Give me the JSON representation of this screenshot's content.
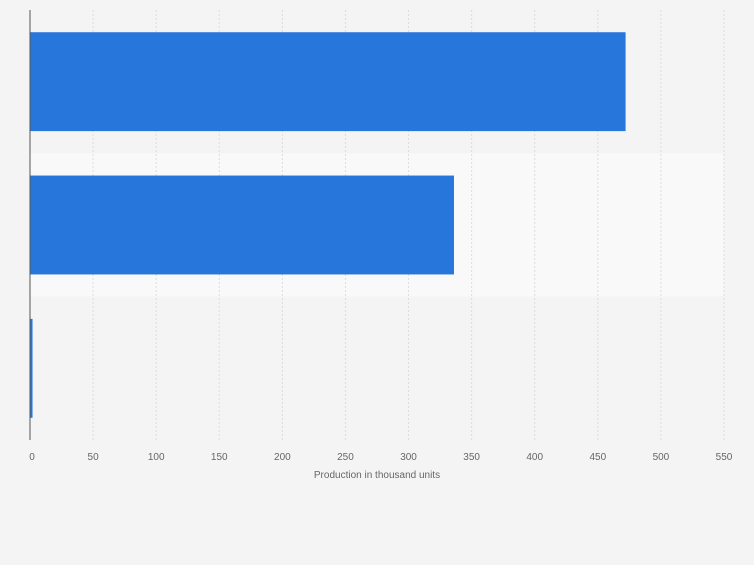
{
  "chart_data": {
    "type": "bar",
    "orientation": "horizontal",
    "categories": [
      "",
      "",
      ""
    ],
    "values": [
      472,
      336,
      2
    ],
    "title": "",
    "xlabel": "Production in thousand units",
    "ylabel": "",
    "xlim": [
      0,
      550
    ],
    "ticks": [
      0,
      50,
      100,
      150,
      200,
      250,
      300,
      350,
      400,
      450,
      500,
      550
    ],
    "grid": "vertical",
    "legend": "none",
    "colors": {
      "bar": "#2776db",
      "background": "#f4f4f4",
      "band_alt": "#f9f9f9",
      "grid": "#dcdcdc",
      "axis": "#555555",
      "text": "#666666"
    }
  }
}
